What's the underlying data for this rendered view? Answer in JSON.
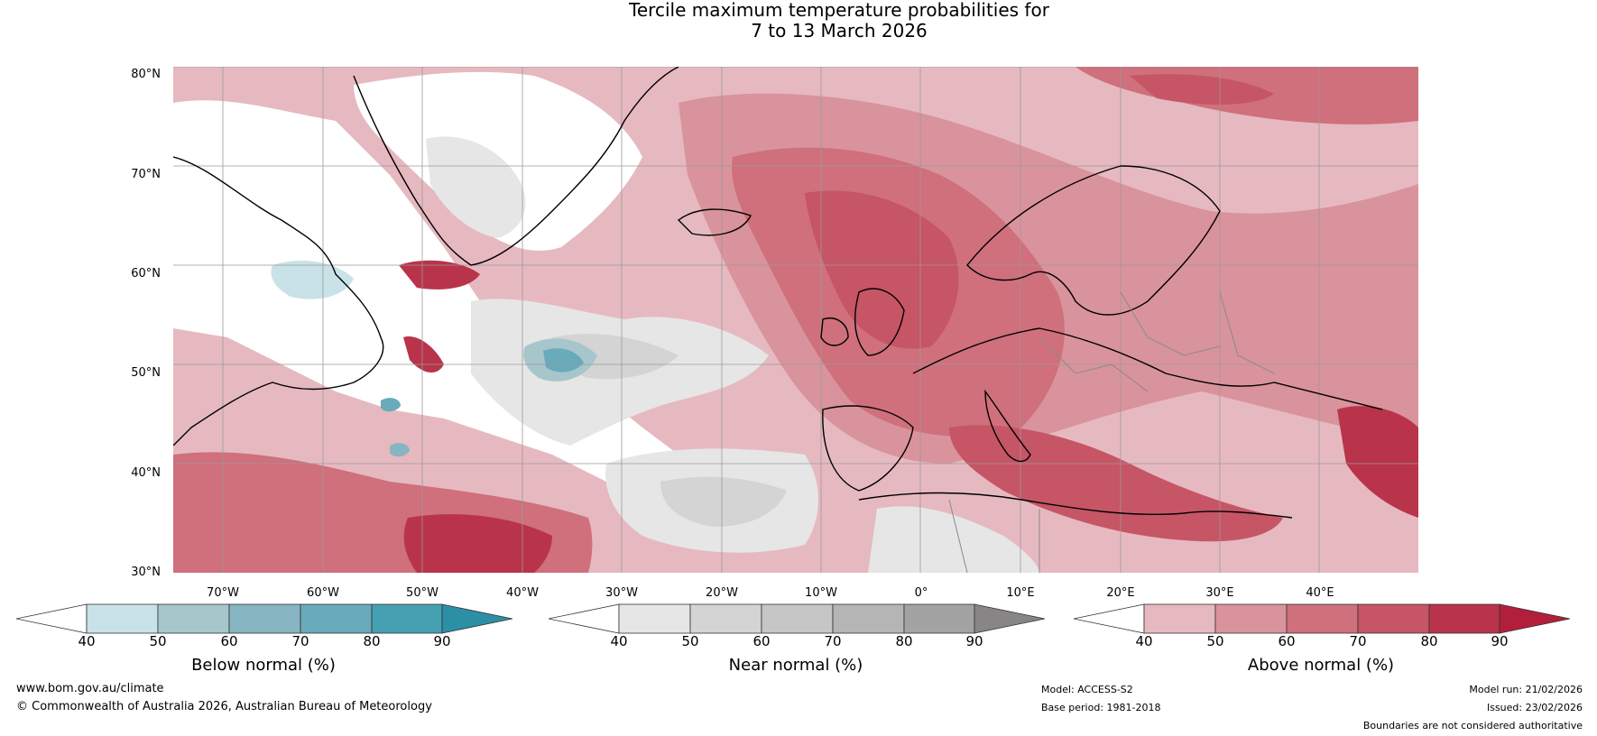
{
  "title": {
    "line1": "Tercile maximum temperature probabilities for",
    "line2": "7 to 13 March 2026"
  },
  "lat_labels": [
    "80°N",
    "70°N",
    "60°N",
    "50°N",
    "40°N",
    "30°N"
  ],
  "lon_labels": [
    "70°W",
    "60°W",
    "50°W",
    "40°W",
    "30°W",
    "20°W",
    "10°W",
    "0°",
    "10°E",
    "20°E",
    "30°E",
    "40°E"
  ],
  "colorbars": [
    {
      "name": "below",
      "label": "Below normal (%)",
      "ticks": [
        "40",
        "50",
        "60",
        "70",
        "80",
        "90"
      ],
      "colors": [
        "#ffffff",
        "#c9e2e8",
        "#a6c6cc",
        "#87b5c1",
        "#69aabb",
        "#45a0b2",
        "#2c8fa5"
      ]
    },
    {
      "name": "near",
      "label": "Near normal (%)",
      "ticks": [
        "40",
        "50",
        "60",
        "70",
        "80",
        "90"
      ],
      "colors": [
        "#ffffff",
        "#e6e6e6",
        "#d4d4d4",
        "#c6c6c6",
        "#b5b5b5",
        "#a3a3a3",
        "#878585"
      ]
    },
    {
      "name": "above",
      "label": "Above normal (%)",
      "ticks": [
        "40",
        "50",
        "60",
        "70",
        "80",
        "90"
      ],
      "colors": [
        "#ffffff",
        "#e6b9c0",
        "#d9939c",
        "#cf707c",
        "#c65566",
        "#b9344b",
        "#b21f3a"
      ]
    }
  ],
  "footer": {
    "website": "www.bom.gov.au/climate",
    "copyright": "© Commonwealth of Australia 2026, Australian Bureau of Meteorology",
    "model": "Model: ACCESS-S2",
    "base_period": "Base period: 1981-2018",
    "model_run": "Model run: 21/02/2026",
    "issued": "Issued: 23/02/2026",
    "disclaimer": "Boundaries are not considered authoritative"
  }
}
